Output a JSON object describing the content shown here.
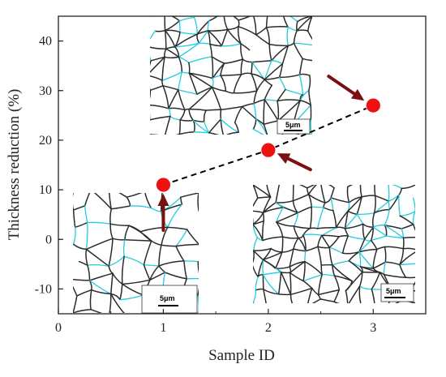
{
  "chart_data": {
    "type": "scatter",
    "title": "",
    "xlabel": "Sample ID",
    "ylabel": "Thickness reduction (%)",
    "xlim": [
      0,
      3.5
    ],
    "ylim": [
      -15,
      45
    ],
    "x_ticks": [
      0,
      1,
      2,
      3
    ],
    "y_ticks": [
      -10,
      0,
      10,
      20,
      30,
      40
    ],
    "grid": false,
    "legend": "none",
    "series": [
      {
        "x": [
          1,
          2,
          3
        ],
        "y": [
          11,
          18,
          27
        ],
        "marker": "circle",
        "marker_color": "#ee1111",
        "line_style": "dashed",
        "line_color": "#000000"
      }
    ],
    "annotations": {
      "arrow_color": "#7a1010",
      "grain_boundary_colors": [
        "#2b2b2b",
        "#22ccdd"
      ],
      "scale_bars": [
        "5μm",
        "5μm",
        "5μm"
      ]
    }
  }
}
